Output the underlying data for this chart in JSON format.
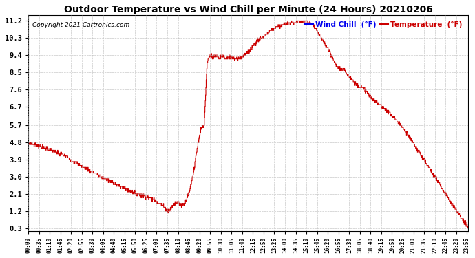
{
  "title": "Outdoor Temperature vs Wind Chill per Minute (24 Hours) 20210206",
  "copyright": "Copyright 2021 Cartronics.com",
  "legend_wind_chill": "Wind Chill  (°F)",
  "legend_temperature": "Temperature  (°F)",
  "yticks": [
    0.3,
    1.2,
    2.1,
    3.0,
    3.9,
    4.8,
    5.7,
    6.7,
    7.6,
    8.5,
    9.4,
    10.3,
    11.2
  ],
  "ylim": [
    0.15,
    11.5
  ],
  "background_color": "#ffffff",
  "plot_bg_color": "#ffffff",
  "grid_color": "#bbbbbb",
  "line_color": "#cc0000",
  "title_color": "#000000",
  "copyright_color": "#000000",
  "legend_wc_color": "#0000ee",
  "legend_temp_color": "#cc0000",
  "tick_interval_minutes": 35,
  "figwidth": 6.9,
  "figheight": 3.75,
  "dpi": 100
}
